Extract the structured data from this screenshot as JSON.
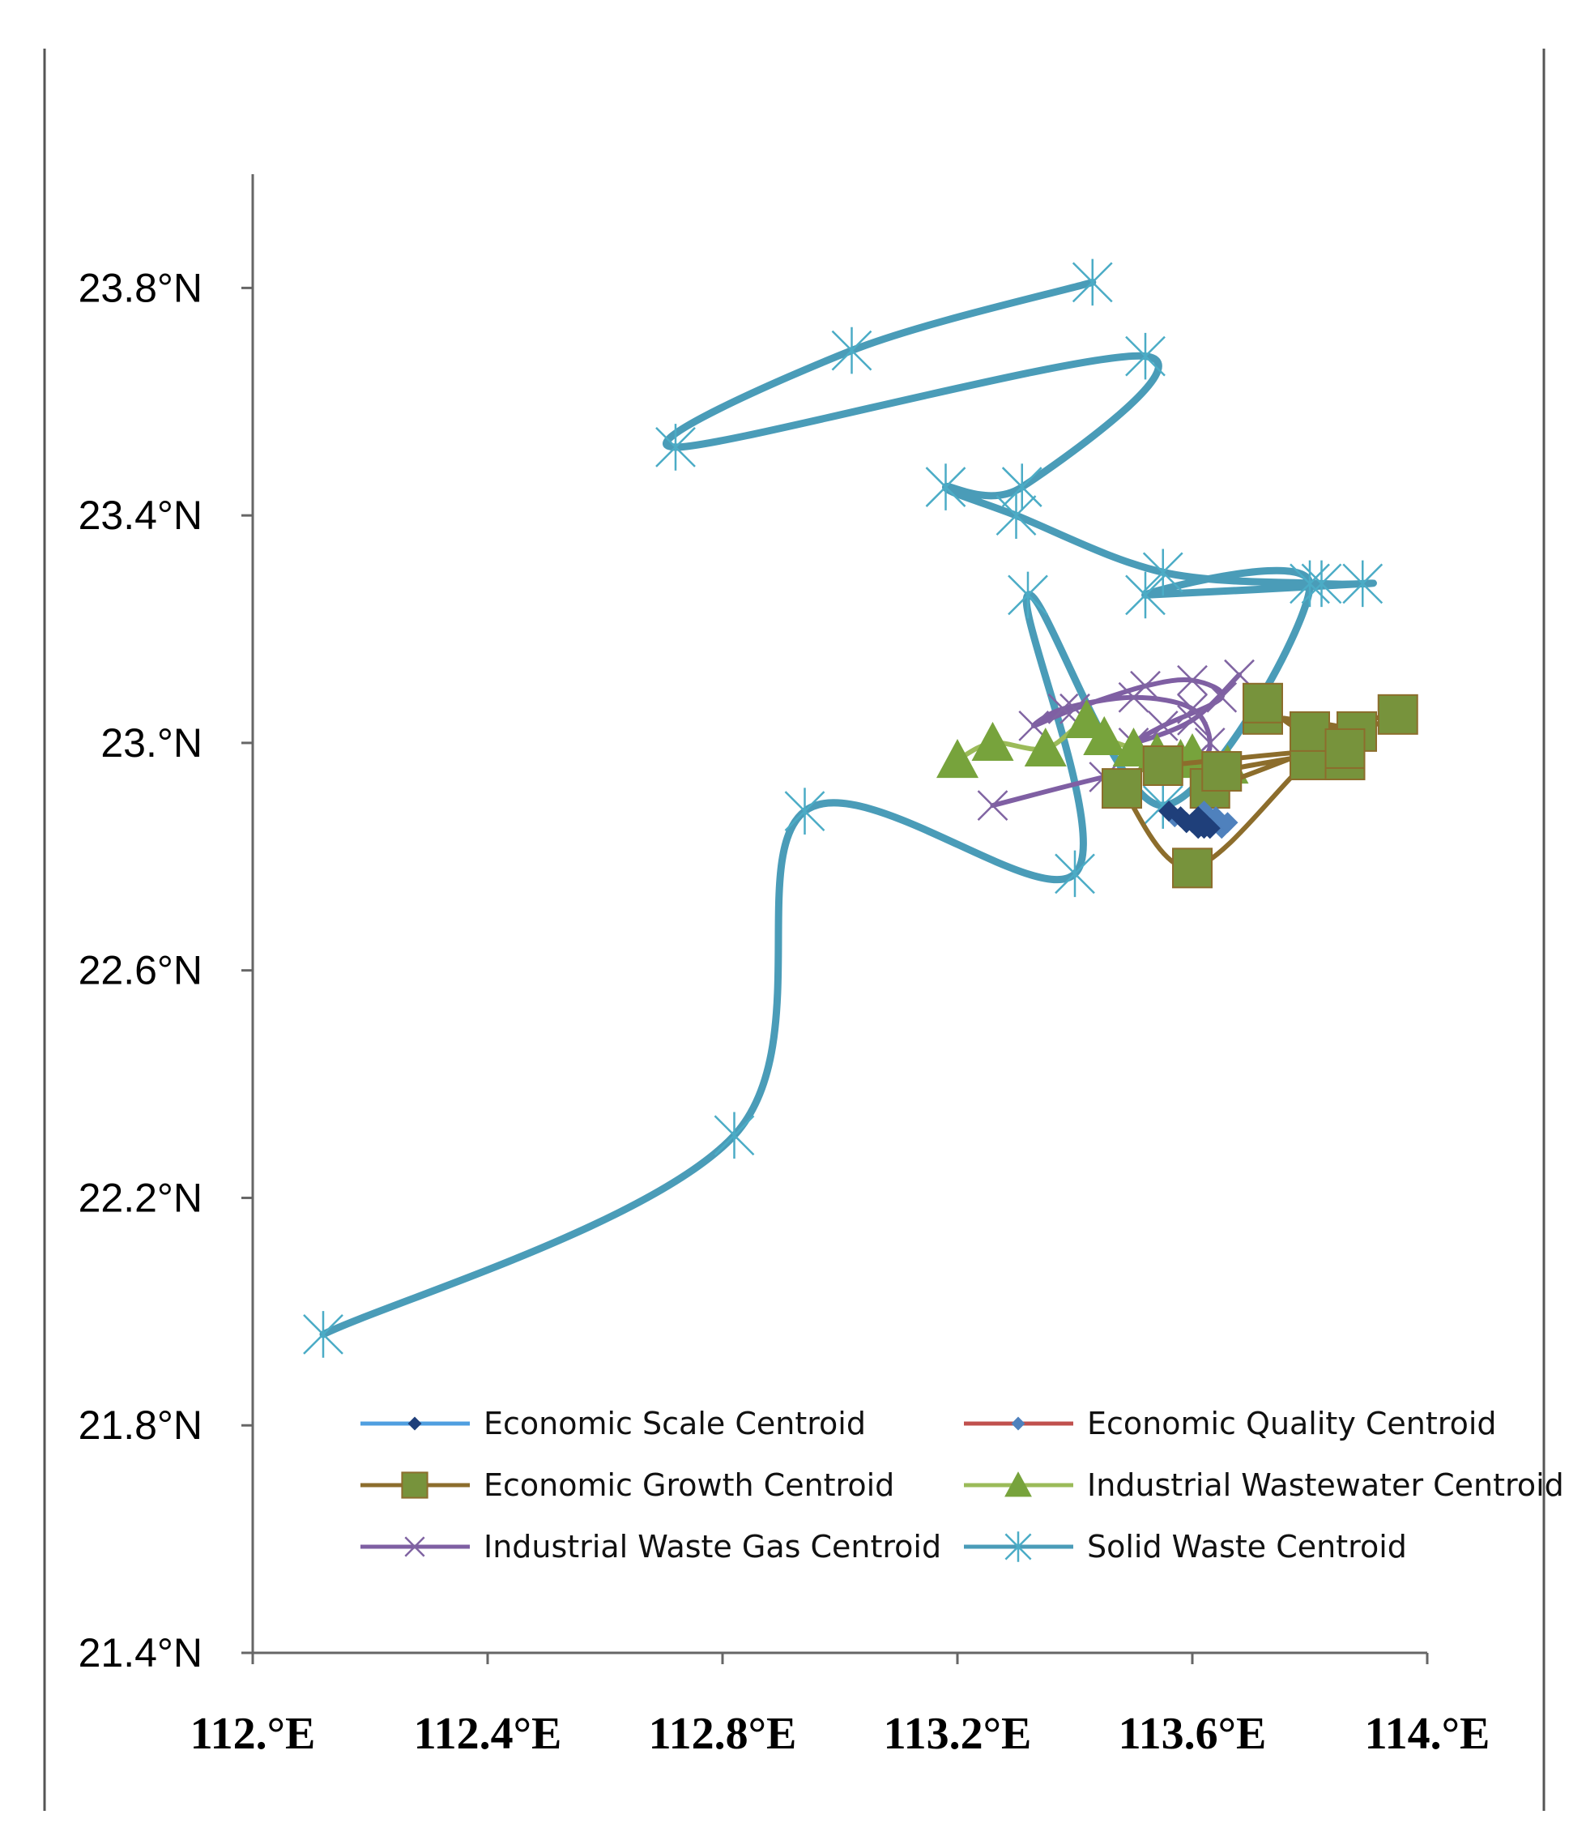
{
  "chart_data": {
    "type": "line",
    "title": "",
    "xlabel": "",
    "ylabel": "",
    "xlim": [
      112.0,
      114.0
    ],
    "ylim": [
      21.4,
      24.0
    ],
    "x_ticks": [
      {
        "value": 112.0,
        "label": "112.°E"
      },
      {
        "value": 112.4,
        "label": "112.4°E"
      },
      {
        "value": 112.8,
        "label": "112.8°E"
      },
      {
        "value": 113.2,
        "label": "113.2°E"
      },
      {
        "value": 113.6,
        "label": "113.6°E"
      },
      {
        "value": 114.0,
        "label": "114.°E"
      }
    ],
    "y_ticks": [
      {
        "value": 21.4,
        "label": "21.4°N"
      },
      {
        "value": 21.8,
        "label": "21.8°N"
      },
      {
        "value": 22.2,
        "label": "22.2°N"
      },
      {
        "value": 22.6,
        "label": "22.6°N"
      },
      {
        "value": 23.0,
        "label": "23.°N"
      },
      {
        "value": 23.4,
        "label": "23.4°N"
      },
      {
        "value": 23.8,
        "label": "23.8°N"
      }
    ],
    "grid": false,
    "legend_position": "bottom",
    "series": [
      {
        "name": "Economic Scale Centroid",
        "color": "#4f9fe0",
        "marker": "diamond",
        "marker_color": "#1f3f7a",
        "points": [
          [
            113.56,
            22.88
          ],
          [
            113.58,
            22.87
          ],
          [
            113.59,
            22.86
          ],
          [
            113.6,
            22.86
          ],
          [
            113.61,
            22.85
          ],
          [
            113.62,
            22.85
          ],
          [
            113.63,
            22.85
          ],
          [
            113.62,
            22.86
          ],
          [
            113.61,
            22.87
          ]
        ]
      },
      {
        "name": "Economic Quality Centroid",
        "color": "#c0504d",
        "marker": "diamond",
        "marker_color": "#4f81bd",
        "points": [
          [
            113.57,
            22.87
          ],
          [
            113.59,
            22.86
          ],
          [
            113.61,
            22.85
          ],
          [
            113.63,
            22.85
          ],
          [
            113.65,
            22.85
          ],
          [
            113.66,
            22.86
          ],
          [
            113.64,
            22.87
          ],
          [
            113.62,
            22.88
          ]
        ]
      },
      {
        "name": "Economic Growth Centroid",
        "color": "#8c6d2c",
        "marker": "square",
        "marker_color": "#77933c",
        "points": [
          [
            113.48,
            22.92
          ],
          [
            113.6,
            22.78
          ],
          [
            113.8,
            22.97
          ],
          [
            113.86,
            22.97
          ],
          [
            113.88,
            23.02
          ],
          [
            113.72,
            23.05
          ],
          [
            113.72,
            23.07
          ],
          [
            113.8,
            23.02
          ],
          [
            113.95,
            23.05
          ],
          [
            113.63,
            22.92
          ],
          [
            113.65,
            22.95
          ],
          [
            113.86,
            22.99
          ],
          [
            113.55,
            22.96
          ]
        ]
      },
      {
        "name": "Industrial Wastewater Centroid",
        "color": "#9bbb59",
        "marker": "triangle",
        "marker_color": "#77a33c",
        "points": [
          [
            113.2,
            22.97
          ],
          [
            113.26,
            23.0
          ],
          [
            113.35,
            22.99
          ],
          [
            113.42,
            23.04
          ],
          [
            113.45,
            23.01
          ],
          [
            113.5,
            22.99
          ],
          [
            113.54,
            22.98
          ],
          [
            113.58,
            22.97
          ],
          [
            113.6,
            22.98
          ],
          [
            113.64,
            22.95
          ],
          [
            113.66,
            22.96
          ]
        ]
      },
      {
        "name": "Industrial Waste Gas Centroid",
        "color": "#7f5fa3",
        "marker": "x",
        "marker_color": "#8064a2",
        "points": [
          [
            113.26,
            22.89
          ],
          [
            113.45,
            22.94
          ],
          [
            113.6,
            22.97
          ],
          [
            113.63,
            23.0
          ],
          [
            113.6,
            23.06
          ],
          [
            113.5,
            23.08
          ],
          [
            113.38,
            23.06
          ],
          [
            113.33,
            23.03
          ],
          [
            113.4,
            23.06
          ],
          [
            113.52,
            23.1
          ],
          [
            113.6,
            23.11
          ],
          [
            113.65,
            23.08
          ],
          [
            113.55,
            23.03
          ],
          [
            113.5,
            23.0
          ],
          [
            113.6,
            23.04
          ],
          [
            113.68,
            23.12
          ]
        ]
      },
      {
        "name": "Solid Waste Centroid",
        "color": "#4a9cb8",
        "marker": "star",
        "marker_color": "#4bacc6",
        "points": [
          [
            113.43,
            23.81
          ],
          [
            113.02,
            23.69
          ],
          [
            112.72,
            23.52
          ],
          [
            113.52,
            23.68
          ],
          [
            113.31,
            23.45
          ],
          [
            113.18,
            23.45
          ],
          [
            113.3,
            23.4
          ],
          [
            113.55,
            23.3
          ],
          [
            113.82,
            23.28
          ],
          [
            113.89,
            23.28
          ],
          [
            113.52,
            23.26
          ],
          [
            113.8,
            23.28
          ],
          [
            113.55,
            22.89
          ],
          [
            113.32,
            23.26
          ],
          [
            113.4,
            22.77
          ],
          [
            112.94,
            22.88
          ],
          [
            112.82,
            22.31
          ],
          [
            112.12,
            21.96
          ]
        ]
      }
    ]
  }
}
